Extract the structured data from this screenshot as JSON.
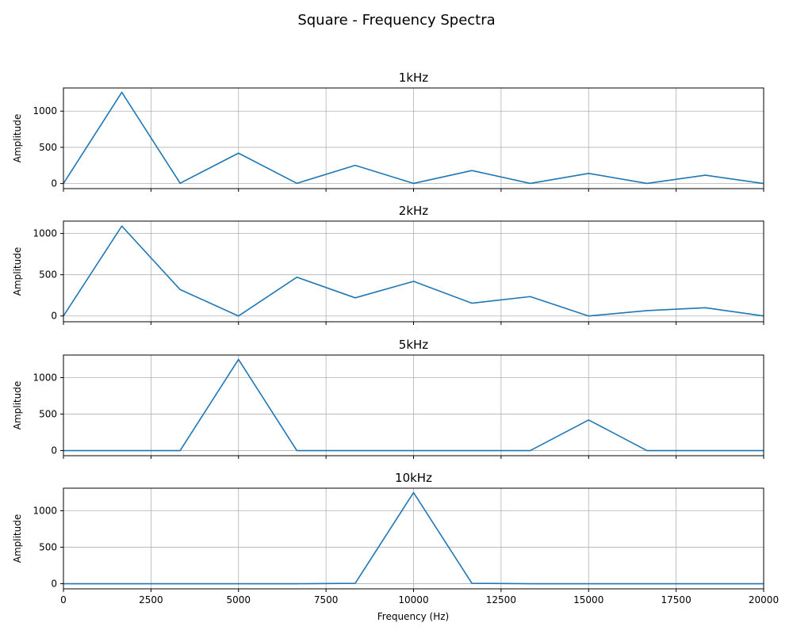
{
  "chart_data": {
    "type": "line",
    "title": "Square - Frequency Spectra",
    "xlabel": "Frequency (Hz)",
    "ylabel": "Amplitude",
    "xlim": [
      0,
      20000
    ],
    "xticks": [
      0,
      2500,
      5000,
      7500,
      10000,
      12500,
      15000,
      17500,
      20000
    ],
    "grid": true,
    "line_color": "#1f77b4",
    "x": [
      0,
      1667,
      3333,
      5000,
      6667,
      8333,
      10000,
      11667,
      13333,
      15000,
      16667,
      18333,
      20000
    ],
    "panels": [
      {
        "title": "1kHz",
        "ylim": [
          -70,
          1320
        ],
        "yticks": [
          0,
          500,
          1000
        ],
        "values": [
          0,
          1260,
          5,
          420,
          3,
          252,
          2,
          180,
          2,
          140,
          2,
          115,
          0
        ]
      },
      {
        "title": "2kHz",
        "ylim": [
          -70,
          1150
        ],
        "yticks": [
          0,
          500,
          1000
        ],
        "values": [
          0,
          1090,
          320,
          0,
          470,
          220,
          420,
          155,
          235,
          0,
          65,
          100,
          0
        ]
      },
      {
        "title": "5kHz",
        "ylim": [
          -70,
          1310
        ],
        "yticks": [
          0,
          500,
          1000
        ],
        "values": [
          0,
          0,
          0,
          1250,
          0,
          0,
          0,
          0,
          0,
          420,
          0,
          0,
          0
        ]
      },
      {
        "title": "10kHz",
        "ylim": [
          -70,
          1310
        ],
        "yticks": [
          0,
          500,
          1000
        ],
        "values": [
          0,
          0,
          0,
          0,
          0,
          5,
          1250,
          5,
          0,
          0,
          0,
          0,
          0
        ]
      }
    ]
  }
}
